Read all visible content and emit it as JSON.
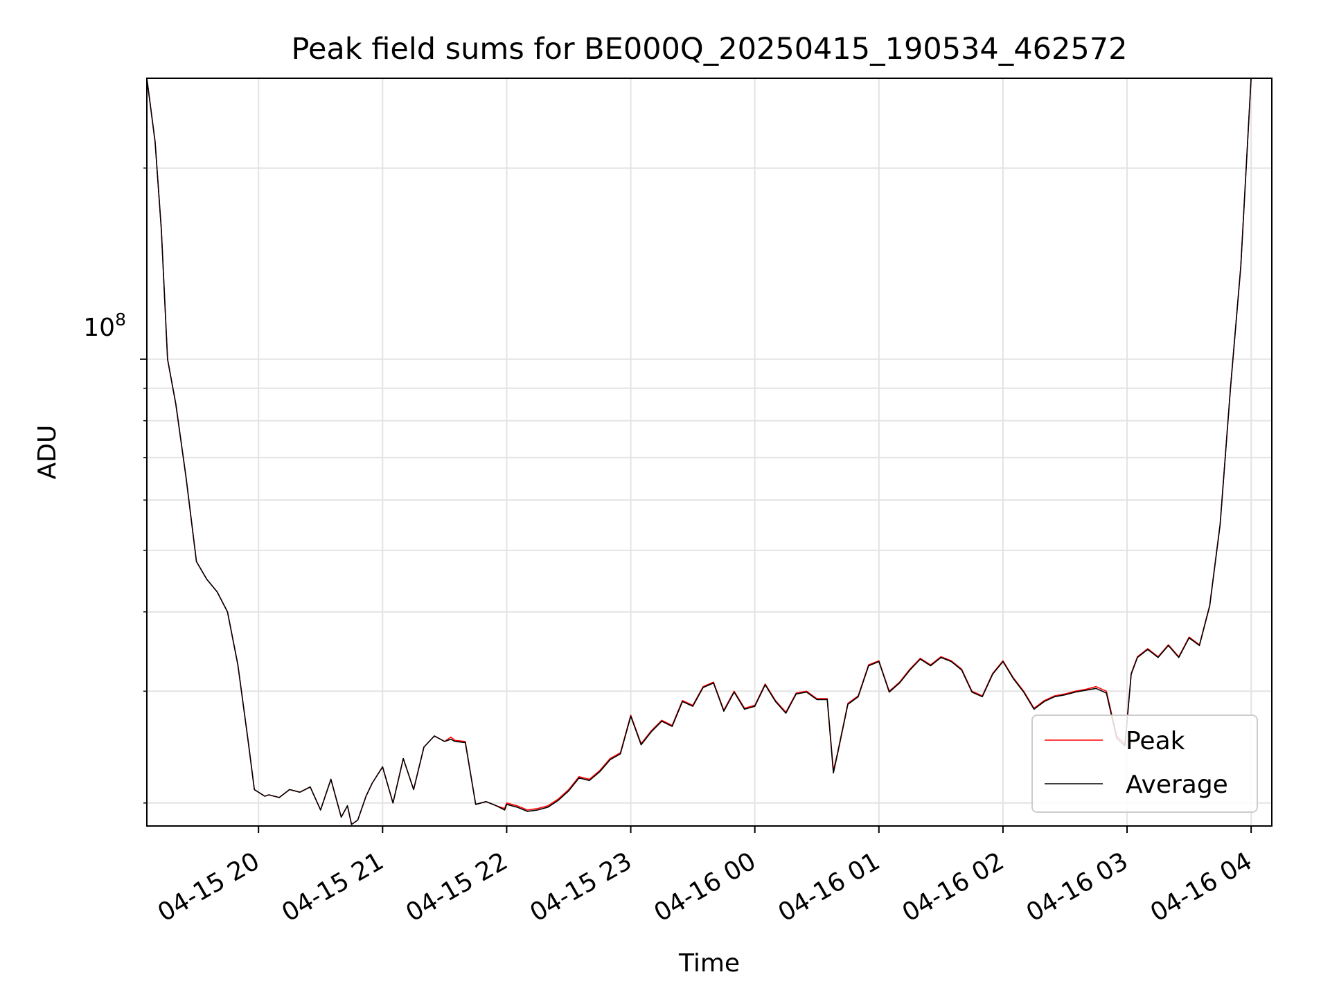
{
  "chart_data": {
    "type": "line",
    "title": "Peak field sums for BE000Q_20250415_190534_462572",
    "xlabel": "Time",
    "ylabel": "ADU",
    "yscale": "log",
    "x_start": "04-15 19:06",
    "x_end": "04-16 04:10",
    "xlim": [
      "04-15 19:06",
      "04-16 04:10"
    ],
    "ylim": [
      18400000,
      277000000
    ],
    "x_ticks": [
      "04-15 20",
      "04-15 21",
      "04-15 22",
      "04-15 23",
      "04-16 00",
      "04-16 01",
      "04-16 02",
      "04-16 03",
      "04-16 04"
    ],
    "y_major_tick_label": "10",
    "y_major_tick_exponent": "8",
    "grid": true,
    "legend_position": "lower right",
    "series": [
      {
        "name": "Peak",
        "color": "#ff0000",
        "x": [
          "04-15 19:06",
          "04-15 19:10",
          "04-15 19:13",
          "04-15 19:16",
          "04-15 19:20",
          "04-15 19:25",
          "04-15 19:30",
          "04-15 19:35",
          "04-15 19:40",
          "04-15 19:45",
          "04-15 19:50",
          "04-15 19:55",
          "04-15 19:58",
          "04-15 20:03",
          "04-15 20:05",
          "04-15 20:10",
          "04-15 20:15",
          "04-15 20:20",
          "04-15 20:25",
          "04-15 20:30",
          "04-15 20:35",
          "04-15 20:40",
          "04-15 20:43",
          "04-15 20:45",
          "04-15 20:48",
          "04-15 20:52",
          "04-15 20:55",
          "04-15 21:00",
          "04-15 21:05",
          "04-15 21:10",
          "04-15 21:15",
          "04-15 21:20",
          "04-15 21:25",
          "04-15 21:30",
          "04-15 21:33",
          "04-15 21:35",
          "04-15 21:40",
          "04-15 21:45",
          "04-15 21:50",
          "04-15 21:55",
          "04-15 21:59",
          "04-15 22:00",
          "04-15 22:05",
          "04-15 22:10",
          "04-15 22:15",
          "04-15 22:20",
          "04-15 22:25",
          "04-15 22:30",
          "04-15 22:35",
          "04-15 22:40",
          "04-15 22:45",
          "04-15 22:50",
          "04-15 22:55",
          "04-15 23:00",
          "04-15 23:05",
          "04-15 23:10",
          "04-15 23:15",
          "04-15 23:20",
          "04-15 23:25",
          "04-15 23:30",
          "04-15 23:35",
          "04-15 23:40",
          "04-15 23:45",
          "04-15 23:50",
          "04-15 23:55",
          "04-16 00:00",
          "04-16 00:05",
          "04-16 00:10",
          "04-16 00:15",
          "04-16 00:20",
          "04-16 00:25",
          "04-16 00:30",
          "04-16 00:35",
          "04-16 00:38",
          "04-16 00:40",
          "04-16 00:45",
          "04-16 00:50",
          "04-16 00:55",
          "04-16 01:00",
          "04-16 01:05",
          "04-16 01:10",
          "04-16 01:15",
          "04-16 01:20",
          "04-16 01:25",
          "04-16 01:30",
          "04-16 01:35",
          "04-16 01:40",
          "04-16 01:45",
          "04-16 01:50",
          "04-16 01:55",
          "04-16 02:00",
          "04-16 02:05",
          "04-16 02:10",
          "04-16 02:15",
          "04-16 02:20",
          "04-16 02:25",
          "04-16 02:30",
          "04-16 02:35",
          "04-16 02:40",
          "04-16 02:45",
          "04-16 02:50",
          "04-16 02:55",
          "04-16 02:59",
          "04-16 03:02",
          "04-16 03:05",
          "04-16 03:10",
          "04-16 03:15",
          "04-16 03:20",
          "04-16 03:25",
          "04-16 03:30",
          "04-16 03:35",
          "04-16 03:40",
          "04-16 03:45",
          "04-16 03:50",
          "04-16 03:55",
          "04-16 04:00",
          "04-16 04:03"
        ],
        "values": [
          277000000,
          220000000,
          160000000,
          100000000,
          85000000,
          65000000,
          48000000,
          45000000,
          43000000,
          40000000,
          33000000,
          25000000,
          21000000,
          20500000,
          20600000,
          20400000,
          21000000,
          20800000,
          21200000,
          19500000,
          21800000,
          19000000,
          19800000,
          18500000,
          18800000,
          20500000,
          21500000,
          22800000,
          20000000,
          23500000,
          21000000,
          24500000,
          25500000,
          25000000,
          25400000,
          25100000,
          25000000,
          19900000,
          20100000,
          19800000,
          19600000,
          20000000,
          19800000,
          19500000,
          19600000,
          19800000,
          20300000,
          21000000,
          22000000,
          21800000,
          22500000,
          23500000,
          24000000,
          27500000,
          24800000,
          26000000,
          27000000,
          26500000,
          29000000,
          28500000,
          30500000,
          31000000,
          28000000,
          30000000,
          28200000,
          28500000,
          30800000,
          29000000,
          27800000,
          29800000,
          30000000,
          29200000,
          29200000,
          22500000,
          24000000,
          28700000,
          29500000,
          33000000,
          33500000,
          30000000,
          31000000,
          32500000,
          33800000,
          33000000,
          34000000,
          33500000,
          32500000,
          30000000,
          29500000,
          32000000,
          33500000,
          31500000,
          30000000,
          28200000,
          29000000,
          29500000,
          29700000,
          30000000,
          30200000,
          30500000,
          30000000,
          25500000,
          24800000,
          32000000,
          34000000,
          35000000,
          34000000,
          35500000,
          34000000,
          36500000,
          35500000,
          41000000,
          55000000,
          90000000,
          140000000,
          277000000,
          277000000
        ]
      },
      {
        "name": "Average",
        "color": "#000000",
        "x": [
          "04-15 19:06",
          "04-15 19:10",
          "04-15 19:13",
          "04-15 19:16",
          "04-15 19:20",
          "04-15 19:25",
          "04-15 19:30",
          "04-15 19:35",
          "04-15 19:40",
          "04-15 19:45",
          "04-15 19:50",
          "04-15 19:55",
          "04-15 19:58",
          "04-15 20:03",
          "04-15 20:05",
          "04-15 20:10",
          "04-15 20:15",
          "04-15 20:20",
          "04-15 20:25",
          "04-15 20:30",
          "04-15 20:35",
          "04-15 20:40",
          "04-15 20:43",
          "04-15 20:45",
          "04-15 20:48",
          "04-15 20:52",
          "04-15 20:55",
          "04-15 21:00",
          "04-15 21:05",
          "04-15 21:10",
          "04-15 21:15",
          "04-15 21:20",
          "04-15 21:25",
          "04-15 21:30",
          "04-15 21:33",
          "04-15 21:35",
          "04-15 21:40",
          "04-15 21:45",
          "04-15 21:50",
          "04-15 21:55",
          "04-15 21:59",
          "04-15 22:00",
          "04-15 22:05",
          "04-15 22:10",
          "04-15 22:15",
          "04-15 22:20",
          "04-15 22:25",
          "04-15 22:30",
          "04-15 22:35",
          "04-15 22:40",
          "04-15 22:45",
          "04-15 22:50",
          "04-15 22:55",
          "04-15 23:00",
          "04-15 23:05",
          "04-15 23:10",
          "04-15 23:15",
          "04-15 23:20",
          "04-15 23:25",
          "04-15 23:30",
          "04-15 23:35",
          "04-15 23:40",
          "04-15 23:45",
          "04-15 23:50",
          "04-15 23:55",
          "04-16 00:00",
          "04-16 00:05",
          "04-16 00:10",
          "04-16 00:15",
          "04-16 00:20",
          "04-16 00:25",
          "04-16 00:30",
          "04-16 00:35",
          "04-16 00:38",
          "04-16 00:40",
          "04-16 00:45",
          "04-16 00:50",
          "04-16 00:55",
          "04-16 01:00",
          "04-16 01:05",
          "04-16 01:10",
          "04-16 01:15",
          "04-16 01:20",
          "04-16 01:25",
          "04-16 01:30",
          "04-16 01:35",
          "04-16 01:40",
          "04-16 01:45",
          "04-16 01:50",
          "04-16 01:55",
          "04-16 02:00",
          "04-16 02:05",
          "04-16 02:10",
          "04-16 02:15",
          "04-16 02:20",
          "04-16 02:25",
          "04-16 02:30",
          "04-16 02:35",
          "04-16 02:40",
          "04-16 02:45",
          "04-16 02:50",
          "04-16 02:55",
          "04-16 02:59",
          "04-16 03:02",
          "04-16 03:05",
          "04-16 03:10",
          "04-16 03:15",
          "04-16 03:20",
          "04-16 03:25",
          "04-16 03:30",
          "04-16 03:35",
          "04-16 03:40",
          "04-16 03:45",
          "04-16 03:50",
          "04-16 03:55",
          "04-16 04:00",
          "04-16 04:03"
        ],
        "values": [
          277000000,
          220000000,
          160000000,
          100000000,
          85000000,
          65000000,
          48000000,
          45000000,
          43000000,
          40000000,
          33000000,
          25000000,
          21000000,
          20500000,
          20600000,
          20400000,
          21000000,
          20800000,
          21200000,
          19500000,
          21800000,
          19000000,
          19800000,
          18500000,
          18800000,
          20500000,
          21500000,
          22800000,
          20000000,
          23500000,
          21000000,
          24500000,
          25500000,
          25000000,
          25200000,
          25000000,
          24900000,
          19900000,
          20100000,
          19800000,
          19500000,
          19900000,
          19700000,
          19400000,
          19500000,
          19700000,
          20200000,
          20900000,
          21900000,
          21700000,
          22400000,
          23400000,
          23900000,
          27400000,
          24700000,
          25900000,
          26900000,
          26400000,
          28900000,
          28400000,
          30400000,
          30900000,
          27900000,
          29900000,
          28100000,
          28400000,
          30700000,
          28900000,
          27700000,
          29700000,
          29900000,
          29100000,
          29100000,
          22300000,
          23900000,
          28600000,
          29400000,
          32900000,
          33400000,
          29900000,
          30900000,
          32400000,
          33700000,
          32900000,
          33900000,
          33400000,
          32400000,
          29900000,
          29400000,
          31900000,
          33400000,
          31400000,
          29900000,
          28100000,
          28900000,
          29400000,
          29600000,
          29900000,
          30100000,
          30300000,
          29800000,
          25300000,
          24600000,
          31900000,
          33900000,
          34900000,
          33900000,
          35400000,
          33900000,
          36400000,
          35400000,
          40900000,
          54900000,
          89900000,
          139900000,
          277000000,
          277000000
        ]
      }
    ]
  }
}
